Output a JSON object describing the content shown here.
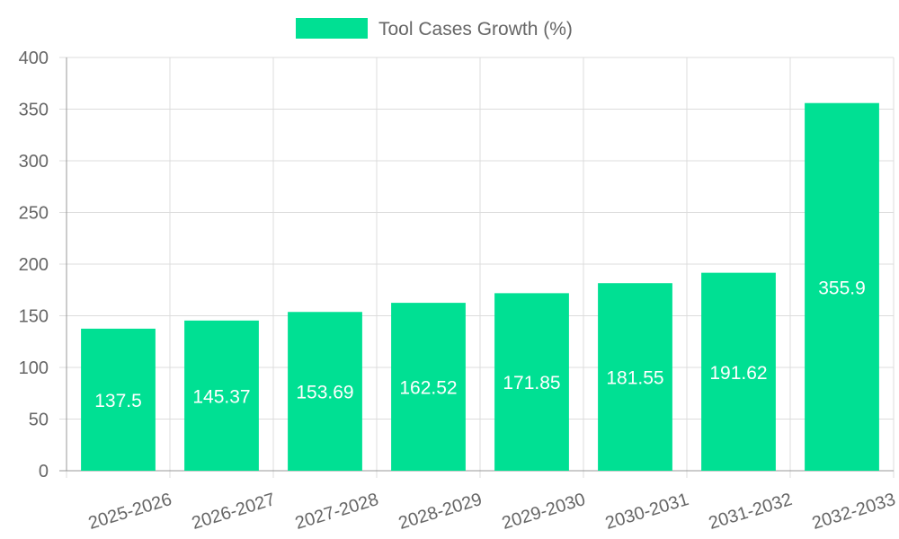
{
  "chart_data": {
    "type": "bar",
    "categories": [
      "2025-2026",
      "2026-2027",
      "2027-2028",
      "2028-2029",
      "2029-2030",
      "2030-2031",
      "2031-2032",
      "2032-2033"
    ],
    "series": [
      {
        "name": "Tool Cases Growth (%)",
        "values": [
          137.5,
          145.37,
          153.69,
          162.52,
          171.85,
          181.55,
          191.62,
          355.9
        ]
      }
    ],
    "data_labels": [
      "137.5",
      "145.37",
      "153.69",
      "162.52",
      "171.85",
      "181.55",
      "191.62",
      "355.9"
    ],
    "y_ticks": [
      0,
      50,
      100,
      150,
      200,
      250,
      300,
      350,
      400
    ],
    "ylim": [
      0,
      400
    ],
    "grid": true,
    "legend_position": "top-center",
    "colors": {
      "bar": "#00e093",
      "grid": "#dcdcdc",
      "axis": "#999999",
      "text": "#666666"
    }
  }
}
